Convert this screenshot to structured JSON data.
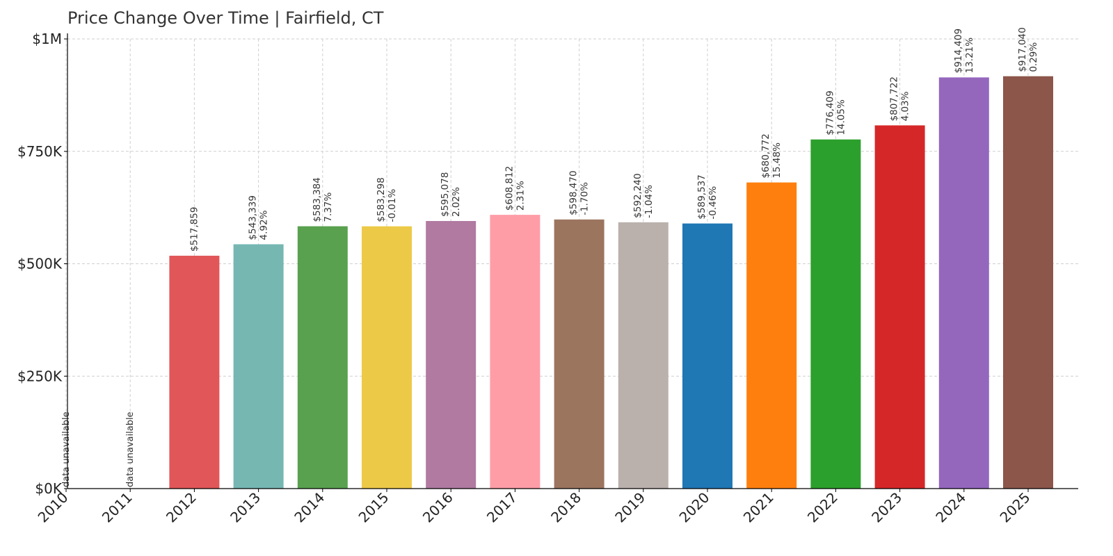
{
  "chart_data": {
    "type": "bar",
    "title": "Price Change Over Time | Fairfield, CT",
    "xlabel": "",
    "ylabel": "",
    "ylim": [
      0,
      1000000
    ],
    "y_ticks": [
      {
        "value": 0,
        "label": "$0K"
      },
      {
        "value": 250000,
        "label": "$250K"
      },
      {
        "value": 500000,
        "label": "$500K"
      },
      {
        "value": 750000,
        "label": "$750K"
      },
      {
        "value": 1000000,
        "label": "$1M"
      }
    ],
    "grid": true,
    "categories": [
      "2010",
      "2011",
      "2012",
      "2013",
      "2014",
      "2015",
      "2016",
      "2017",
      "2018",
      "2019",
      "2020",
      "2021",
      "2022",
      "2023",
      "2024",
      "2025"
    ],
    "values": [
      null,
      null,
      517859,
      543339,
      583384,
      583298,
      595078,
      608812,
      598470,
      592240,
      589537,
      680772,
      776409,
      807722,
      914409,
      917040
    ],
    "value_labels": [
      null,
      null,
      "$517,859",
      "$543,339",
      "$583,384",
      "$583,298",
      "$595,078",
      "$608,812",
      "$598,470",
      "$592,240",
      "$589,537",
      "$680,772",
      "$776,409",
      "$807,722",
      "$914,409",
      "$917,040"
    ],
    "change_labels": [
      null,
      null,
      null,
      "4.92%",
      "7.37%",
      "-0.01%",
      "2.02%",
      "2.31%",
      "-1.70%",
      "-1.04%",
      "-0.46%",
      "15.48%",
      "14.05%",
      "4.03%",
      "13.21%",
      "0.29%"
    ],
    "unavailable_label": "data unavailable",
    "colors": [
      "#e15759",
      "#e15759",
      "#e15759",
      "#76b7b2",
      "#59a14f",
      "#edc948",
      "#b07aa1",
      "#ff9da7",
      "#9c755f",
      "#bab0ac",
      "#1f77b4",
      "#ff7f0e",
      "#2ca02c",
      "#d62728",
      "#9467bd",
      "#8c564b"
    ]
  }
}
